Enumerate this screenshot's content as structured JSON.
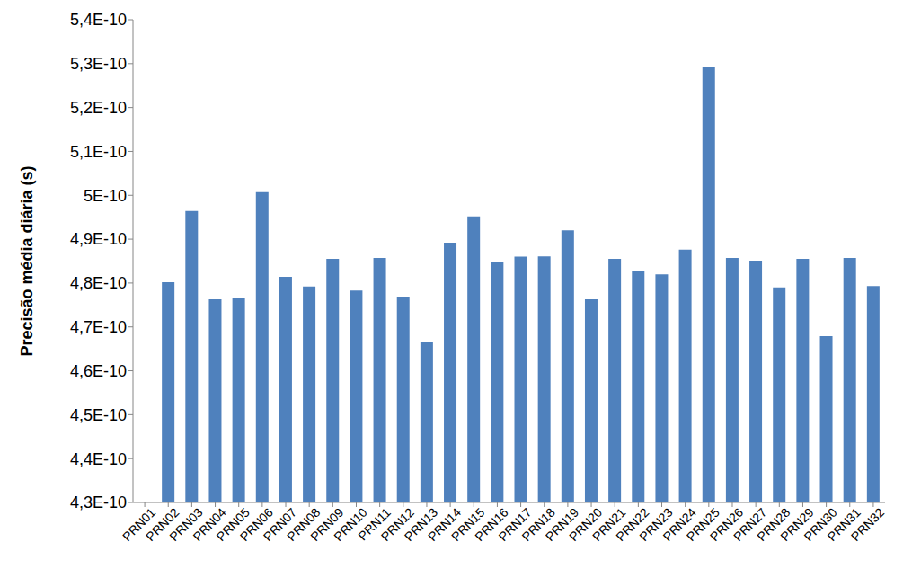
{
  "chart_data": {
    "type": "bar",
    "y_label": "Precisão média diária (s)",
    "categories": [
      "PRN01",
      "PRN02",
      "PRN03",
      "PRN04",
      "PRN05",
      "PRN06",
      "PRN07",
      "PRN08",
      "PRN09",
      "PRN10",
      "PRN11",
      "PRN12",
      "PRN13",
      "PRN14",
      "PRN15",
      "PRN16",
      "PRN17",
      "PRN18",
      "PRN19",
      "PRN20",
      "PRN21",
      "PRN22",
      "PRN23",
      "PRN24",
      "PRN25",
      "PRN26",
      "PRN27",
      "PRN28",
      "PRN29",
      "PRN30",
      "PRN31",
      "PRN32"
    ],
    "values": [
      null,
      4.802e-10,
      4.964e-10,
      4.763e-10,
      4.767e-10,
      5.007e-10,
      4.814e-10,
      4.792e-10,
      4.855e-10,
      4.783e-10,
      4.857e-10,
      4.769e-10,
      4.665e-10,
      4.892e-10,
      4.952e-10,
      4.847e-10,
      4.86e-10,
      4.861e-10,
      4.92e-10,
      4.763e-10,
      4.855e-10,
      4.828e-10,
      4.82e-10,
      4.876e-10,
      5.293e-10,
      4.857e-10,
      4.851e-10,
      4.79e-10,
      4.855e-10,
      4.679e-10,
      4.857e-10,
      4.793e-10
    ],
    "color": "#4f81bd",
    "ylim": [
      4.3e-10,
      5.4e-10
    ],
    "yticks": [
      {
        "value": 4.3e-10,
        "label": "4,3E-10"
      },
      {
        "value": 4.4e-10,
        "label": "4,4E-10"
      },
      {
        "value": 4.5e-10,
        "label": "4,5E-10"
      },
      {
        "value": 4.6e-10,
        "label": "4,6E-10"
      },
      {
        "value": 4.7e-10,
        "label": "4,7E-10"
      },
      {
        "value": 4.8e-10,
        "label": "4,8E-10"
      },
      {
        "value": 4.9e-10,
        "label": "4,9E-10"
      },
      {
        "value": 5e-10,
        "label": "5E-10"
      },
      {
        "value": 5.1e-10,
        "label": "5,1E-10"
      },
      {
        "value": 5.2e-10,
        "label": "5,2E-10"
      },
      {
        "value": 5.3e-10,
        "label": "5,3E-10"
      },
      {
        "value": 5.4e-10,
        "label": "5,4E-10"
      }
    ],
    "grid": false
  }
}
